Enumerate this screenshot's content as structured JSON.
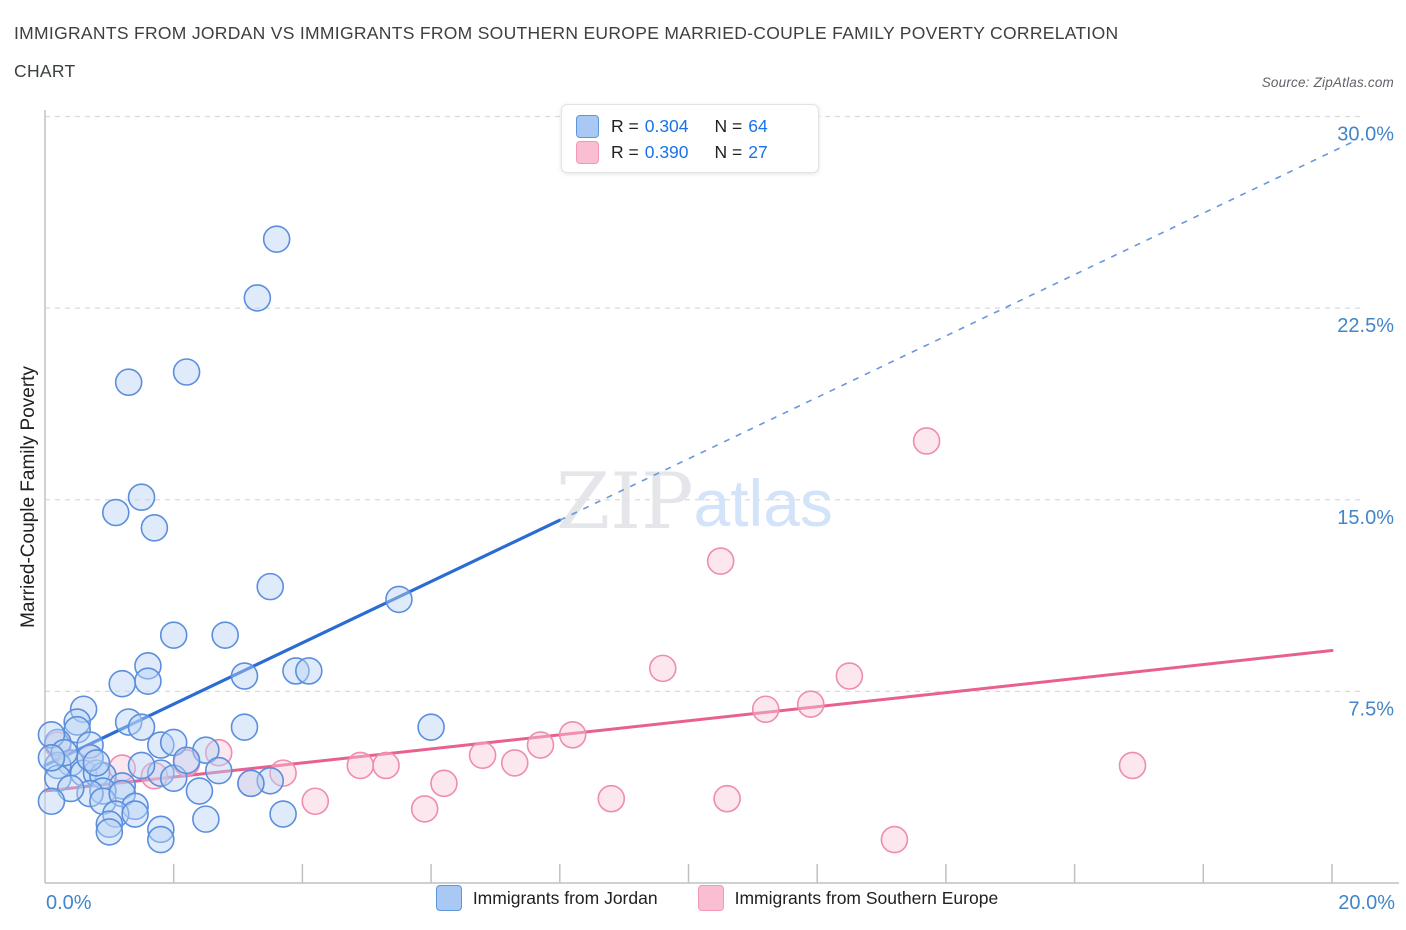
{
  "header": {
    "title_line1": "IMMIGRANTS FROM JORDAN VS IMMIGRANTS FROM SOUTHERN EUROPE MARRIED-COUPLE FAMILY POVERTY CORRELATION",
    "title_line2": "CHART",
    "source": "Source: ZipAtlas.com"
  },
  "watermark": {
    "part1": "ZIP",
    "part2": "atlas"
  },
  "legend_box": {
    "rows": [
      {
        "r_label": "R =",
        "r_value": "0.304",
        "n_label": "N =",
        "n_value": "64",
        "series": "Immigrants from Jordan"
      },
      {
        "r_label": "R =",
        "r_value": "0.390",
        "n_label": "N =",
        "n_value": "27",
        "series": "Immigrants from Southern Europe"
      }
    ]
  },
  "bottom_legend": {
    "items": [
      {
        "label": "Immigrants from Jordan"
      },
      {
        "label": "Immigrants from Southern Europe"
      }
    ]
  },
  "colors": {
    "blue_point_fill": "#b9d3f5",
    "blue_point_stroke": "#5b8fdd",
    "pink_point_fill": "#f9c9db",
    "pink_point_stroke": "#ef8cb0",
    "blue_trend": "#2a6bd4",
    "blue_trend_dashed": "#6a97dd",
    "pink_trend": "#e8608f",
    "gridline": "#d9dadc",
    "axis": "#bdc1c6",
    "tick_label": "#4285c8",
    "watermark_zip": "#e4e6e9",
    "watermark_atlas": "#d2e3fa"
  },
  "chart_data": {
    "type": "scatter",
    "title": "IMMIGRANTS FROM JORDAN VS IMMIGRANTS FROM SOUTHERN EUROPE MARRIED-COUPLE FAMILY POVERTY CORRELATION CHART",
    "xlabel": "",
    "ylabel": "Married-Couple Family Poverty",
    "xlim": [
      0,
      20
    ],
    "ylim": [
      0,
      30
    ],
    "grid": "horizontal-dashed",
    "legend_position": "top-center",
    "x_tick_labels": [
      {
        "label": "0.0%",
        "value": 0
      },
      {
        "label": "20.0%",
        "value": 20
      }
    ],
    "x_minor_tick_values": [
      2,
      4,
      6,
      8,
      10,
      12,
      14,
      16,
      18,
      20
    ],
    "y_ticks": [
      {
        "label": "30.0%",
        "value": 30
      },
      {
        "label": "22.5%",
        "value": 22.5
      },
      {
        "label": "15.0%",
        "value": 15
      },
      {
        "label": "7.5%",
        "value": 7.5
      }
    ],
    "series": [
      {
        "name": "Immigrants from Jordan",
        "R": 0.304,
        "N": 64,
        "points": [
          [
            3.6,
            25.2
          ],
          [
            3.3,
            22.9
          ],
          [
            2.2,
            20.0
          ],
          [
            1.3,
            19.6
          ],
          [
            1.5,
            15.1
          ],
          [
            1.1,
            14.5
          ],
          [
            1.7,
            13.9
          ],
          [
            3.5,
            11.6
          ],
          [
            5.5,
            11.1
          ],
          [
            2.0,
            9.7
          ],
          [
            2.8,
            9.7
          ],
          [
            1.6,
            8.5
          ],
          [
            3.1,
            8.1
          ],
          [
            3.9,
            8.3
          ],
          [
            4.1,
            8.3
          ],
          [
            1.6,
            7.9
          ],
          [
            1.2,
            7.8
          ],
          [
            0.6,
            6.8
          ],
          [
            0.5,
            6.3
          ],
          [
            0.5,
            6.0
          ],
          [
            1.3,
            6.3
          ],
          [
            1.5,
            6.1
          ],
          [
            3.1,
            6.1
          ],
          [
            6.0,
            6.1
          ],
          [
            1.8,
            5.4
          ],
          [
            2.0,
            5.5
          ],
          [
            2.5,
            5.2
          ],
          [
            0.2,
            5.5
          ],
          [
            0.7,
            5.4
          ],
          [
            0.4,
            4.7
          ],
          [
            0.2,
            4.6
          ],
          [
            0.6,
            4.3
          ],
          [
            0.8,
            4.3
          ],
          [
            0.9,
            4.2
          ],
          [
            1.8,
            4.3
          ],
          [
            2.0,
            4.1
          ],
          [
            1.2,
            3.8
          ],
          [
            0.9,
            3.6
          ],
          [
            0.7,
            3.5
          ],
          [
            0.9,
            3.2
          ],
          [
            1.2,
            3.5
          ],
          [
            2.4,
            3.6
          ],
          [
            1.4,
            3.0
          ],
          [
            1.1,
            2.7
          ],
          [
            1.4,
            2.7
          ],
          [
            2.5,
            2.5
          ],
          [
            1.8,
            2.1
          ],
          [
            1.8,
            1.7
          ],
          [
            1.0,
            2.3
          ],
          [
            1.0,
            2.0
          ],
          [
            3.5,
            4.0
          ],
          [
            3.2,
            3.9
          ],
          [
            3.7,
            2.7
          ],
          [
            0.1,
            5.8
          ],
          [
            0.3,
            5.1
          ],
          [
            0.7,
            4.9
          ],
          [
            0.2,
            4.1
          ],
          [
            0.8,
            4.7
          ],
          [
            0.4,
            3.7
          ],
          [
            0.1,
            3.2
          ],
          [
            1.5,
            4.6
          ],
          [
            2.2,
            4.8
          ],
          [
            2.7,
            4.4
          ],
          [
            0.1,
            4.9
          ]
        ]
      },
      {
        "name": "Immigrants from Southern Europe",
        "R": 0.39,
        "N": 27,
        "points": [
          [
            0.2,
            5.4
          ],
          [
            0.7,
            4.9
          ],
          [
            1.2,
            4.5
          ],
          [
            2.2,
            4.7
          ],
          [
            1.7,
            4.2
          ],
          [
            2.7,
            5.1
          ],
          [
            3.2,
            3.9
          ],
          [
            3.7,
            4.3
          ],
          [
            4.2,
            3.2
          ],
          [
            4.9,
            4.6
          ],
          [
            5.3,
            4.6
          ],
          [
            5.9,
            2.9
          ],
          [
            6.2,
            3.9
          ],
          [
            6.8,
            5.0
          ],
          [
            7.3,
            4.7
          ],
          [
            7.7,
            5.4
          ],
          [
            8.2,
            5.8
          ],
          [
            8.8,
            3.3
          ],
          [
            10.6,
            3.3
          ],
          [
            9.6,
            8.4
          ],
          [
            10.5,
            12.6
          ],
          [
            11.2,
            6.8
          ],
          [
            11.9,
            7.0
          ],
          [
            12.5,
            8.1
          ],
          [
            13.7,
            17.3
          ],
          [
            13.2,
            1.7
          ],
          [
            16.9,
            4.6
          ]
        ]
      }
    ],
    "trend_lines": [
      {
        "series": "Immigrants from Jordan",
        "solid": [
          [
            0,
            4.6
          ],
          [
            8.0,
            14.2
          ]
        ],
        "dashed": [
          [
            8.0,
            14.2
          ],
          [
            20.4,
            29.1
          ]
        ]
      },
      {
        "series": "Immigrants from Southern Europe",
        "solid": [
          [
            0,
            3.6
          ],
          [
            20.0,
            9.1
          ]
        ],
        "dashed": null
      }
    ]
  }
}
